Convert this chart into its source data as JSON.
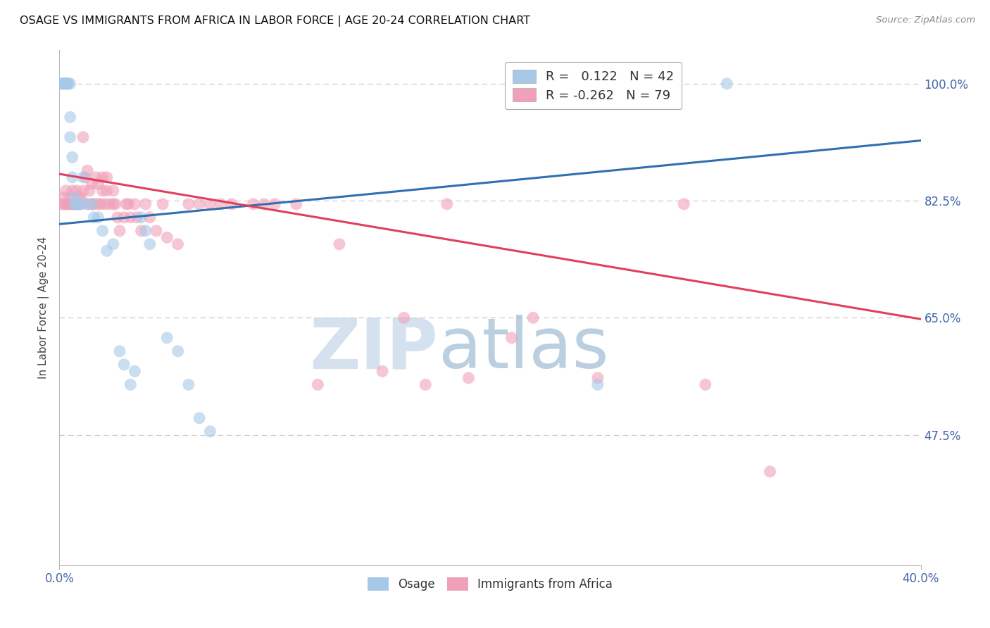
{
  "title": "OSAGE VS IMMIGRANTS FROM AFRICA IN LABOR FORCE | AGE 20-24 CORRELATION CHART",
  "source": "Source: ZipAtlas.com",
  "ylabel": "In Labor Force | Age 20-24",
  "xlim": [
    0.0,
    0.4
  ],
  "ylim": [
    0.28,
    1.05
  ],
  "right_yticks": [
    0.475,
    0.65,
    0.825,
    1.0
  ],
  "right_yticklabels": [
    "47.5%",
    "65.0%",
    "82.5%",
    "100.0%"
  ],
  "xtick_labels": [
    "0.0%",
    "40.0%"
  ],
  "xtick_vals": [
    0.0,
    0.4
  ],
  "osage_color": "#a8c8e8",
  "africa_color": "#f0a0b8",
  "trend_blue": "#3070b0",
  "trend_pink": "#e04060",
  "watermark_zip": "ZIP",
  "watermark_atlas": "atlas",
  "watermark_color_zip": "#c8d8e8",
  "watermark_color_atlas": "#a8b8c8",
  "grid_color": "#cccccc",
  "title_color": "#111111",
  "source_color": "#888888",
  "axis_tick_color": "#4466aa",
  "blue_line_x0": 0.0,
  "blue_line_y0": 0.79,
  "blue_line_x1": 0.4,
  "blue_line_y1": 0.915,
  "pink_line_x0": 0.0,
  "pink_line_y0": 0.865,
  "pink_line_x1": 0.4,
  "pink_line_y1": 0.648,
  "osage_x": [
    0.001,
    0.001,
    0.002,
    0.002,
    0.002,
    0.003,
    0.003,
    0.003,
    0.004,
    0.004,
    0.005,
    0.005,
    0.005,
    0.006,
    0.006,
    0.007,
    0.007,
    0.008,
    0.009,
    0.01,
    0.011,
    0.013,
    0.015,
    0.016,
    0.018,
    0.02,
    0.022,
    0.025,
    0.028,
    0.03,
    0.033,
    0.035,
    0.038,
    0.04,
    0.042,
    0.05,
    0.055,
    0.06,
    0.065,
    0.07,
    0.25,
    0.31
  ],
  "osage_y": [
    1.0,
    1.0,
    1.0,
    1.0,
    1.0,
    1.0,
    1.0,
    1.0,
    1.0,
    1.0,
    0.95,
    0.92,
    1.0,
    0.89,
    0.86,
    0.83,
    0.82,
    0.82,
    0.82,
    0.82,
    0.86,
    0.82,
    0.82,
    0.8,
    0.8,
    0.78,
    0.75,
    0.76,
    0.6,
    0.58,
    0.55,
    0.57,
    0.8,
    0.78,
    0.76,
    0.62,
    0.6,
    0.55,
    0.5,
    0.48,
    0.55,
    1.0
  ],
  "africa_x": [
    0.001,
    0.002,
    0.002,
    0.003,
    0.003,
    0.004,
    0.004,
    0.005,
    0.005,
    0.006,
    0.006,
    0.006,
    0.007,
    0.007,
    0.008,
    0.008,
    0.009,
    0.009,
    0.01,
    0.01,
    0.011,
    0.011,
    0.012,
    0.013,
    0.013,
    0.014,
    0.015,
    0.015,
    0.016,
    0.017,
    0.018,
    0.018,
    0.019,
    0.02,
    0.02,
    0.021,
    0.022,
    0.022,
    0.023,
    0.025,
    0.025,
    0.026,
    0.027,
    0.028,
    0.03,
    0.031,
    0.032,
    0.033,
    0.035,
    0.036,
    0.038,
    0.04,
    0.042,
    0.045,
    0.048,
    0.05,
    0.055,
    0.06,
    0.065,
    0.07,
    0.075,
    0.08,
    0.09,
    0.095,
    0.1,
    0.11,
    0.12,
    0.13,
    0.15,
    0.16,
    0.17,
    0.18,
    0.19,
    0.21,
    0.22,
    0.25,
    0.29,
    0.3,
    0.33
  ],
  "africa_y": [
    0.82,
    0.83,
    0.82,
    0.84,
    0.82,
    0.82,
    0.82,
    0.83,
    0.82,
    0.82,
    0.84,
    0.82,
    0.82,
    0.82,
    0.84,
    0.82,
    0.83,
    0.82,
    0.82,
    0.83,
    0.84,
    0.92,
    0.86,
    0.82,
    0.87,
    0.84,
    0.82,
    0.85,
    0.82,
    0.86,
    0.82,
    0.85,
    0.82,
    0.84,
    0.86,
    0.82,
    0.84,
    0.86,
    0.82,
    0.84,
    0.82,
    0.82,
    0.8,
    0.78,
    0.8,
    0.82,
    0.82,
    0.8,
    0.82,
    0.8,
    0.78,
    0.82,
    0.8,
    0.78,
    0.82,
    0.77,
    0.76,
    0.82,
    0.82,
    0.82,
    0.82,
    0.82,
    0.82,
    0.82,
    0.82,
    0.82,
    0.55,
    0.76,
    0.57,
    0.65,
    0.55,
    0.82,
    0.56,
    0.62,
    0.65,
    0.56,
    0.82,
    0.55,
    0.42
  ]
}
